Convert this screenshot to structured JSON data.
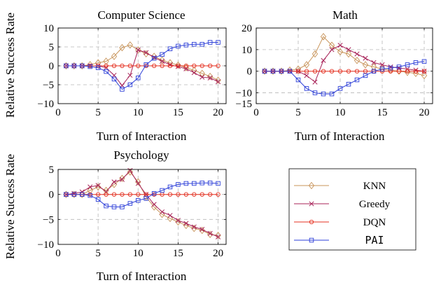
{
  "chart_data": [
    {
      "type": "line",
      "title": "Computer Science",
      "xlabel": "Turn of Interaction",
      "ylabel": "Relative Success Rate",
      "xlim": [
        0,
        21
      ],
      "ylim": [
        -10,
        10
      ],
      "xticks": [
        0,
        5,
        10,
        15,
        20
      ],
      "yticks": [
        -10,
        -5,
        0,
        5,
        10
      ],
      "grid": true,
      "x": [
        1,
        2,
        3,
        4,
        5,
        6,
        7,
        8,
        9,
        10,
        11,
        12,
        13,
        14,
        15,
        16,
        17,
        18,
        19,
        20
      ],
      "series": [
        {
          "name": "KNN",
          "color": "#c8945a",
          "marker": "diamond",
          "values": [
            0,
            0,
            0,
            0.3,
            0.8,
            1.2,
            2.5,
            4.8,
            5.5,
            4.2,
            3.2,
            2.5,
            1.5,
            0.8,
            0.2,
            -0.5,
            -1.2,
            -2,
            -2.8,
            -3.8
          ]
        },
        {
          "name": "Greedy",
          "color": "#a8245a",
          "marker": "x",
          "values": [
            0,
            0,
            0,
            0,
            0,
            -0.5,
            -2.5,
            -5.2,
            -2.5,
            4.2,
            3.5,
            2.2,
            1.2,
            0.3,
            -0.2,
            -0.8,
            -1.8,
            -3,
            -3.2,
            -4.2
          ]
        },
        {
          "name": "DQN",
          "color": "#e53020",
          "marker": "circle",
          "values": [
            0,
            0,
            0,
            0,
            0,
            0,
            0,
            0,
            0,
            0,
            0,
            0,
            0,
            0,
            0,
            0,
            0,
            0,
            0,
            0
          ]
        },
        {
          "name": "PAI",
          "color": "#2d3fd8",
          "marker": "square",
          "values": [
            0,
            0,
            0,
            -0.2,
            -0.5,
            -1.5,
            -3.5,
            -6.2,
            -5,
            -3.2,
            0.3,
            2,
            3,
            4.5,
            5.2,
            5.5,
            5.7,
            5.7,
            6.2,
            6.2
          ]
        }
      ]
    },
    {
      "type": "line",
      "title": "Math",
      "xlabel": "Turn of Interaction",
      "ylabel": "",
      "xlim": [
        0,
        21
      ],
      "ylim": [
        -15,
        20
      ],
      "xticks": [
        0,
        5,
        10,
        15,
        20
      ],
      "yticks": [
        -15,
        -10,
        0,
        10,
        20
      ],
      "grid": true,
      "x": [
        1,
        2,
        3,
        4,
        5,
        6,
        7,
        8,
        9,
        10,
        11,
        12,
        13,
        14,
        15,
        16,
        17,
        18,
        19,
        20
      ],
      "series": [
        {
          "name": "KNN",
          "color": "#c8945a",
          "marker": "diamond",
          "values": [
            0,
            0,
            0,
            0.5,
            1,
            3,
            8,
            16,
            12,
            9,
            8,
            5,
            3,
            2,
            1,
            0.5,
            0,
            -0.5,
            -1,
            -2
          ]
        },
        {
          "name": "Greedy",
          "color": "#a8245a",
          "marker": "x",
          "values": [
            0,
            0,
            0,
            0,
            0,
            -2,
            -5,
            5,
            10,
            12,
            10,
            8,
            6,
            4,
            3,
            2,
            1.5,
            1,
            0.5,
            0
          ]
        },
        {
          "name": "DQN",
          "color": "#e53020",
          "marker": "circle",
          "values": [
            0,
            0,
            0,
            0,
            0,
            0,
            0,
            0,
            0,
            0,
            0,
            0,
            0,
            0,
            0,
            0,
            0,
            0,
            0,
            0
          ]
        },
        {
          "name": "PAI",
          "color": "#2d3fd8",
          "marker": "square",
          "values": [
            0,
            0,
            0,
            0,
            -4,
            -8,
            -10,
            -10.5,
            -10.5,
            -8,
            -6,
            -4,
            -2,
            0,
            1,
            1.5,
            2,
            3,
            4,
            4.5
          ]
        }
      ]
    },
    {
      "type": "line",
      "title": "Psychology",
      "xlabel": "Turn of Interaction",
      "ylabel": "Relative Success Rate",
      "xlim": [
        0,
        21
      ],
      "ylim": [
        -10,
        5
      ],
      "xticks": [
        0,
        5,
        10,
        15,
        20
      ],
      "yticks": [
        -10,
        -5,
        0,
        5
      ],
      "grid": true,
      "x": [
        1,
        2,
        3,
        4,
        5,
        6,
        7,
        8,
        9,
        10,
        11,
        12,
        13,
        14,
        15,
        16,
        17,
        18,
        19,
        20
      ],
      "series": [
        {
          "name": "KNN",
          "color": "#c8945a",
          "marker": "diamond",
          "values": [
            0,
            0,
            0,
            0.8,
            1.5,
            0.8,
            2,
            3.2,
            4.5,
            2.5,
            -0.5,
            -2.5,
            -4,
            -4.8,
            -5.5,
            -6.2,
            -6.8,
            -7.2,
            -8,
            -8.2
          ]
        },
        {
          "name": "Greedy",
          "color": "#a8245a",
          "marker": "x",
          "values": [
            0,
            0.2,
            0.5,
            1.5,
            1.8,
            0.5,
            2.5,
            3,
            4.8,
            2.2,
            0,
            -2,
            -3.5,
            -4.2,
            -5.2,
            -5.8,
            -6.5,
            -7,
            -7.8,
            -8.5
          ]
        },
        {
          "name": "DQN",
          "color": "#e53020",
          "marker": "circle",
          "values": [
            0,
            0,
            0,
            0,
            0,
            0,
            0,
            0,
            0,
            0,
            0,
            0,
            0,
            0,
            0,
            0,
            0,
            0,
            0,
            0
          ]
        },
        {
          "name": "PAI",
          "color": "#2d3fd8",
          "marker": "square",
          "values": [
            0,
            0,
            0,
            -0.2,
            -1,
            -2.3,
            -2.5,
            -2.5,
            -1.8,
            -1.2,
            -0.8,
            0.2,
            0.8,
            1.5,
            2,
            2.2,
            2.2,
            2.3,
            2.3,
            2.2
          ]
        }
      ]
    }
  ],
  "legend": {
    "placement": "right",
    "entries": [
      "KNN",
      "Greedy",
      "DQN",
      "PAI"
    ]
  }
}
